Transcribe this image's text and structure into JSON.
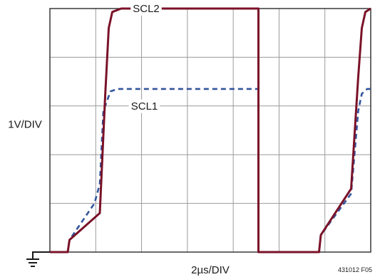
{
  "chart_data": {
    "type": "line",
    "title": "",
    "xlabel": "2µs/DIV",
    "ylabel": "1V/DIV",
    "figure_id": "431012 F05",
    "x_unit": "µs",
    "y_unit": "V",
    "xlim": [
      0,
      18
    ],
    "ylim": [
      0,
      5
    ],
    "grid": true,
    "legend": "none (inline trace labels)",
    "series": [
      {
        "name": "SCL2",
        "color": "#7a1228",
        "style": "solid",
        "x": [
          0,
          1.0,
          1.1,
          2.8,
          3.1,
          3.3,
          3.5,
          4.0,
          11.7,
          11.7,
          11.8,
          15.1,
          15.2,
          16.9,
          17.3,
          17.5,
          17.7,
          18.2,
          18.0
        ],
        "y": [
          0.0,
          0.0,
          0.25,
          0.8,
          3.2,
          4.6,
          4.93,
          5.0,
          5.0,
          0.0,
          0.0,
          0.0,
          0.35,
          1.3,
          3.6,
          4.6,
          4.93,
          5.0,
          5.0
        ]
      },
      {
        "name": "SCL1",
        "color": "#33559c",
        "style": "dashed",
        "x": [
          0,
          1.0,
          1.1,
          2.5,
          2.8,
          3.0,
          3.4,
          3.8,
          11.7,
          11.7,
          11.8,
          15.1,
          15.2,
          16.9,
          17.3,
          17.5,
          17.8,
          18.0
        ],
        "y": [
          0.0,
          0.0,
          0.25,
          1.0,
          1.4,
          2.9,
          3.3,
          3.35,
          3.35,
          0.0,
          0.0,
          0.0,
          0.35,
          1.2,
          2.9,
          3.25,
          3.35,
          3.35
        ]
      }
    ]
  }
}
